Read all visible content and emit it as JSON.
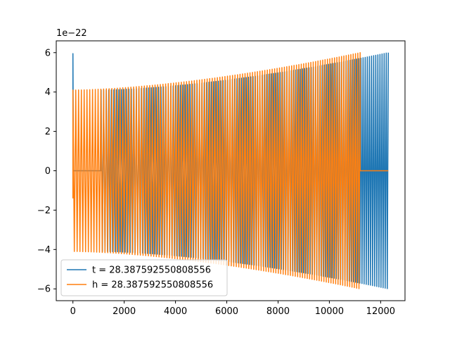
{
  "chart_data": {
    "type": "line",
    "title": "",
    "xlabel": "",
    "ylabel": "",
    "y_scale_label": "1e−22",
    "y_scale_factor": 1e-22,
    "xlim": [
      -650,
      12950
    ],
    "ylim": [
      -6.6e-22,
      6.6e-22
    ],
    "x_ticks": [
      0,
      2000,
      4000,
      6000,
      8000,
      10000,
      12000
    ],
    "x_tick_labels": [
      "0",
      "2000",
      "4000",
      "6000",
      "8000",
      "10000",
      "12000"
    ],
    "y_ticks": [
      -6e-22,
      -4e-22,
      -2e-22,
      0,
      2e-22,
      4e-22,
      6e-22
    ],
    "y_tick_labels": [
      "−6",
      "−4",
      "−2",
      "0",
      "2",
      "4",
      "6"
    ],
    "grid": false,
    "legend_position": "lower-left",
    "series": [
      {
        "name": "t = 28.387592550808556",
        "color": "#1f77b4",
        "signal": {
          "kind": "chirp",
          "spike_x": 0,
          "spike_y": [
            -1.4e-22,
            5.95e-22
          ],
          "zero_until_x": 1100,
          "oscillation_start_x": 1100,
          "oscillation_end_x": 12300,
          "envelope_start_amplitude": 4.1e-22,
          "envelope_end_amplitude": 6e-22,
          "approximate_cycles": 125
        }
      },
      {
        "name": "h = 28.387592550808556",
        "color": "#ff7f0e",
        "signal": {
          "kind": "chirp",
          "oscillation_start_x": 0,
          "oscillation_end_x": 11200,
          "zero_after_x": 11200,
          "zero_until_x_end": 12300,
          "envelope_start_amplitude": 4.1e-22,
          "envelope_end_amplitude": 6e-22,
          "approximate_cycles": 113
        }
      }
    ]
  }
}
